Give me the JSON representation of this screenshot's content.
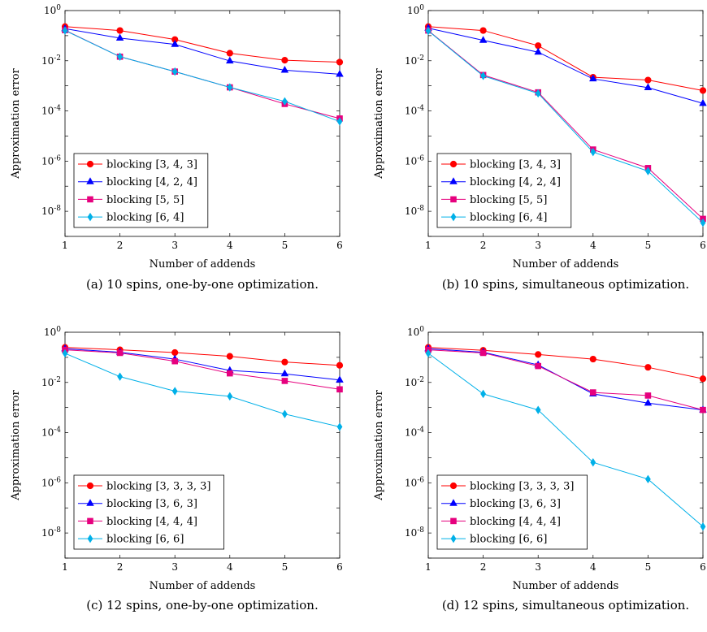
{
  "chart_data": [
    {
      "type": "line",
      "caption": "(a) 10 spins, one-by-one optimization.",
      "xlabel": "Number of addends",
      "ylabel": "Approximation error",
      "x": [
        1,
        2,
        3,
        4,
        5,
        6
      ],
      "xlim": [
        1,
        6
      ],
      "ylim": [
        1e-09,
        1
      ],
      "yscale": "log",
      "yticks": [
        1e-08,
        1e-06,
        0.0001,
        0.01,
        1
      ],
      "grid": false,
      "legend_position": "bottom-left",
      "series": [
        {
          "name": "blocking [3, 4, 3]",
          "color": "#ff0000",
          "marker": "circle",
          "values": [
            0.23,
            0.16,
            0.07,
            0.02,
            0.0105,
            0.0088
          ]
        },
        {
          "name": "blocking [4, 2, 4]",
          "color": "#0000ff",
          "marker": "triangle",
          "values": [
            0.19,
            0.08,
            0.045,
            0.0098,
            0.0042,
            0.0029
          ]
        },
        {
          "name": "blocking [5, 5]",
          "color": "#e6007e",
          "marker": "square",
          "values": [
            0.165,
            0.0145,
            0.0037,
            0.00087,
            0.00019,
            5e-05
          ]
        },
        {
          "name": "blocking [6, 4]",
          "color": "#00b0e8",
          "marker": "diamond",
          "values": [
            0.16,
            0.0145,
            0.0037,
            0.00087,
            0.00024,
            3.8e-05
          ]
        }
      ]
    },
    {
      "type": "line",
      "caption": "(b) 10 spins, simultaneous optimization.",
      "xlabel": "Number of addends",
      "ylabel": "Approximation error",
      "x": [
        1,
        2,
        3,
        4,
        5,
        6
      ],
      "xlim": [
        1,
        6
      ],
      "ylim": [
        1e-09,
        1
      ],
      "yscale": "log",
      "yticks": [
        1e-08,
        1e-06,
        0.0001,
        0.01,
        1
      ],
      "grid": false,
      "legend_position": "bottom-left",
      "series": [
        {
          "name": "blocking [3, 4, 3]",
          "color": "#ff0000",
          "marker": "circle",
          "values": [
            0.23,
            0.16,
            0.04,
            0.0022,
            0.0017,
            0.00065
          ]
        },
        {
          "name": "blocking [4, 2, 4]",
          "color": "#0000ff",
          "marker": "triangle",
          "values": [
            0.2,
            0.065,
            0.022,
            0.0019,
            0.00085,
            0.0002
          ]
        },
        {
          "name": "blocking [5, 5]",
          "color": "#e6007e",
          "marker": "square",
          "values": [
            0.16,
            0.0027,
            0.00055,
            2.9e-06,
            5.3e-07,
            5e-09
          ]
        },
        {
          "name": "blocking [6, 4]",
          "color": "#00b0e8",
          "marker": "diamond",
          "values": [
            0.155,
            0.0025,
            0.0005,
            2.3e-06,
            4e-07,
            3.5e-09
          ]
        }
      ]
    },
    {
      "type": "line",
      "caption": "(c) 12 spins, one-by-one optimization.",
      "xlabel": "Number of addends",
      "ylabel": "Approximation error",
      "x": [
        1,
        2,
        3,
        4,
        5,
        6
      ],
      "xlim": [
        1,
        6
      ],
      "ylim": [
        1e-09,
        1
      ],
      "yscale": "log",
      "yticks": [
        1e-08,
        1e-06,
        0.0001,
        0.01,
        1
      ],
      "grid": false,
      "legend_position": "bottom-left",
      "series": [
        {
          "name": "blocking [3, 3, 3, 3]",
          "color": "#ff0000",
          "marker": "circle",
          "values": [
            0.25,
            0.2,
            0.155,
            0.11,
            0.065,
            0.048
          ]
        },
        {
          "name": "blocking [3, 6, 3]",
          "color": "#0000ff",
          "marker": "triangle",
          "values": [
            0.22,
            0.16,
            0.085,
            0.03,
            0.022,
            0.0125
          ]
        },
        {
          "name": "blocking [4, 4, 4]",
          "color": "#e6007e",
          "marker": "square",
          "values": [
            0.2,
            0.15,
            0.07,
            0.023,
            0.0115,
            0.0053
          ]
        },
        {
          "name": "blocking [6, 6]",
          "color": "#00b0e8",
          "marker": "diamond",
          "values": [
            0.145,
            0.017,
            0.0045,
            0.0028,
            0.00055,
            0.00017
          ]
        }
      ]
    },
    {
      "type": "line",
      "caption": "(d) 12 spins, simultaneous optimization.",
      "xlabel": "Number of addends",
      "ylabel": "Approximation error",
      "x": [
        1,
        2,
        3,
        4,
        5,
        6
      ],
      "xlim": [
        1,
        6
      ],
      "ylim": [
        1e-09,
        1
      ],
      "yscale": "log",
      "yticks": [
        1e-08,
        1e-06,
        0.0001,
        0.01,
        1
      ],
      "grid": false,
      "legend_position": "bottom-left",
      "series": [
        {
          "name": "blocking [3, 3, 3, 3]",
          "color": "#ff0000",
          "marker": "circle",
          "values": [
            0.25,
            0.19,
            0.13,
            0.085,
            0.04,
            0.014
          ]
        },
        {
          "name": "blocking [3, 6, 3]",
          "color": "#0000ff",
          "marker": "triangle",
          "values": [
            0.22,
            0.16,
            0.05,
            0.0035,
            0.0015,
            0.0008
          ]
        },
        {
          "name": "blocking [4, 4, 4]",
          "color": "#e6007e",
          "marker": "square",
          "values": [
            0.2,
            0.15,
            0.045,
            0.004,
            0.003,
            0.0008
          ]
        },
        {
          "name": "blocking [6, 6]",
          "color": "#00b0e8",
          "marker": "diamond",
          "values": [
            0.145,
            0.0035,
            0.0008,
            6.5e-06,
            1.4e-06,
            1.8e-08
          ]
        }
      ]
    }
  ]
}
